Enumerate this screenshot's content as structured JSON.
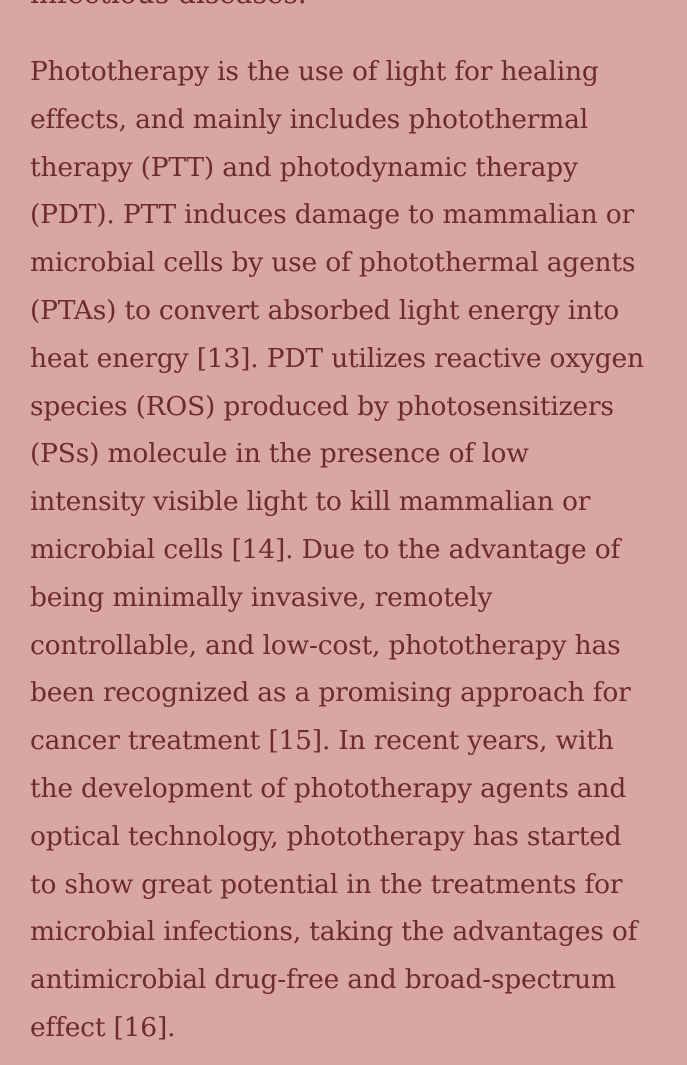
{
  "previous_paragraph": {
    "tail_text": "infectious diseases."
  },
  "paragraph": {
    "lines": [
      {
        "text": "Phototherapy is the use of light for healing"
      },
      {
        "text": "effects, and mainly includes photothermal"
      },
      {
        "text": "therapy (PTT) and photodynamic therapy"
      },
      {
        "text": "(PDT). PTT induces damage to mammalian or"
      },
      {
        "text": "microbial cells by use of photothermal agents"
      },
      {
        "text": "(PTAs) to convert absorbed light energy into"
      },
      {
        "pre": "heat energy ",
        "ref": "[13]",
        "post": ". PDT utilizes reactive oxygen"
      },
      {
        "text": "species (ROS) produced by photosensitizers"
      },
      {
        "text": "(PSs) molecule in the presence of low"
      },
      {
        "text": "intensity visible light to kill mammalian or"
      },
      {
        "pre": "microbial cells ",
        "ref": "[14]",
        "post": ". Due to the advantage of"
      },
      {
        "text": "being minimally invasive, remotely"
      },
      {
        "text": "controllable, and low-cost, phototherapy has"
      },
      {
        "text": "been recognized as a promising approach for"
      },
      {
        "pre": "cancer treatment ",
        "ref": "[15]",
        "post": ". In recent years, with"
      },
      {
        "text": "the development of phototherapy agents and"
      },
      {
        "text": "optical technology, phototherapy has started"
      },
      {
        "text": "to show great potential in the treatments for"
      },
      {
        "text": "microbial infections, taking the advantages of"
      },
      {
        "text": "antimicrobial drug-free and broad-spectrum"
      },
      {
        "pre": "effect ",
        "ref": "[16]",
        "post": "."
      }
    ]
  },
  "colors": {
    "background": "#d8a7a5",
    "text": "#6e2b2d"
  }
}
